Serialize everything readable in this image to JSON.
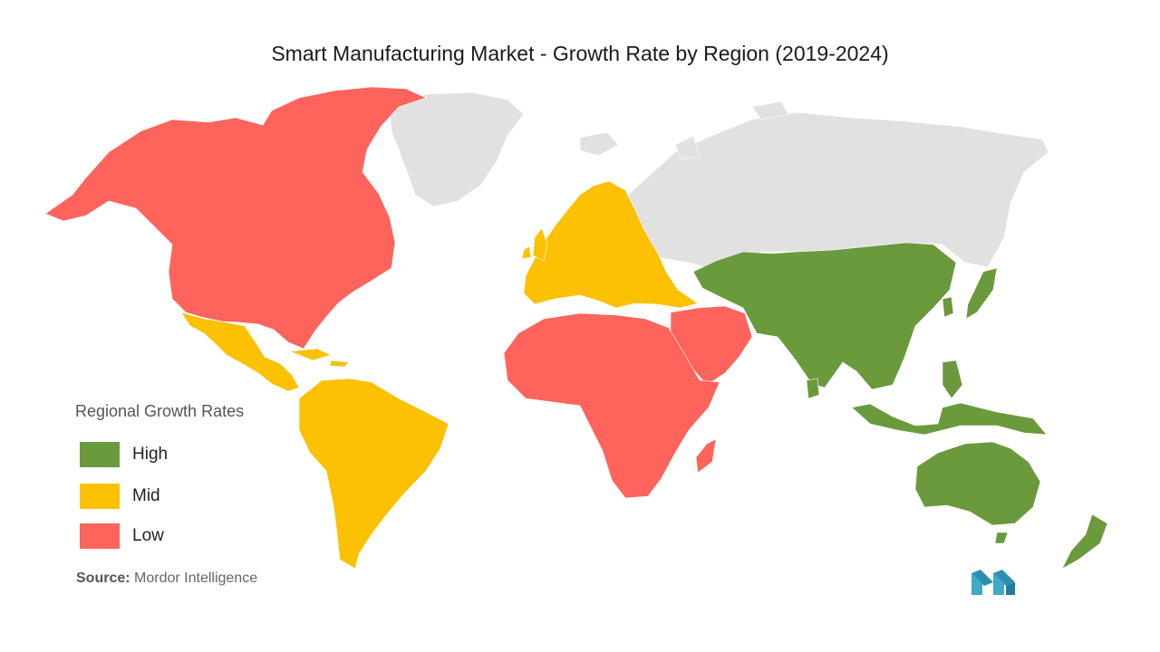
{
  "title": "Smart Manufacturing Market - Growth Rate by Region (2019-2024)",
  "legend": {
    "title": "Regional Growth Rates",
    "items": [
      {
        "label": "High",
        "color": "#6a9a3c"
      },
      {
        "label": "Mid",
        "color": "#fbc102"
      },
      {
        "label": "Low",
        "color": "#fe645c"
      }
    ]
  },
  "no_data_color": "#e1e1e1",
  "regions": [
    {
      "name": "North America",
      "rate": "Low"
    },
    {
      "name": "Greenland",
      "rate": "none"
    },
    {
      "name": "Mexico and Central America",
      "rate": "Mid"
    },
    {
      "name": "South America",
      "rate": "Mid"
    },
    {
      "name": "Europe",
      "rate": "Mid"
    },
    {
      "name": "Russia",
      "rate": "none"
    },
    {
      "name": "Middle East",
      "rate": "Low"
    },
    {
      "name": "Africa",
      "rate": "Low"
    },
    {
      "name": "Asia-Pacific",
      "rate": "High"
    },
    {
      "name": "Australia and New Zealand",
      "rate": "High"
    }
  ],
  "source": {
    "label": "Source:",
    "text": " Mordor Intelligence"
  }
}
